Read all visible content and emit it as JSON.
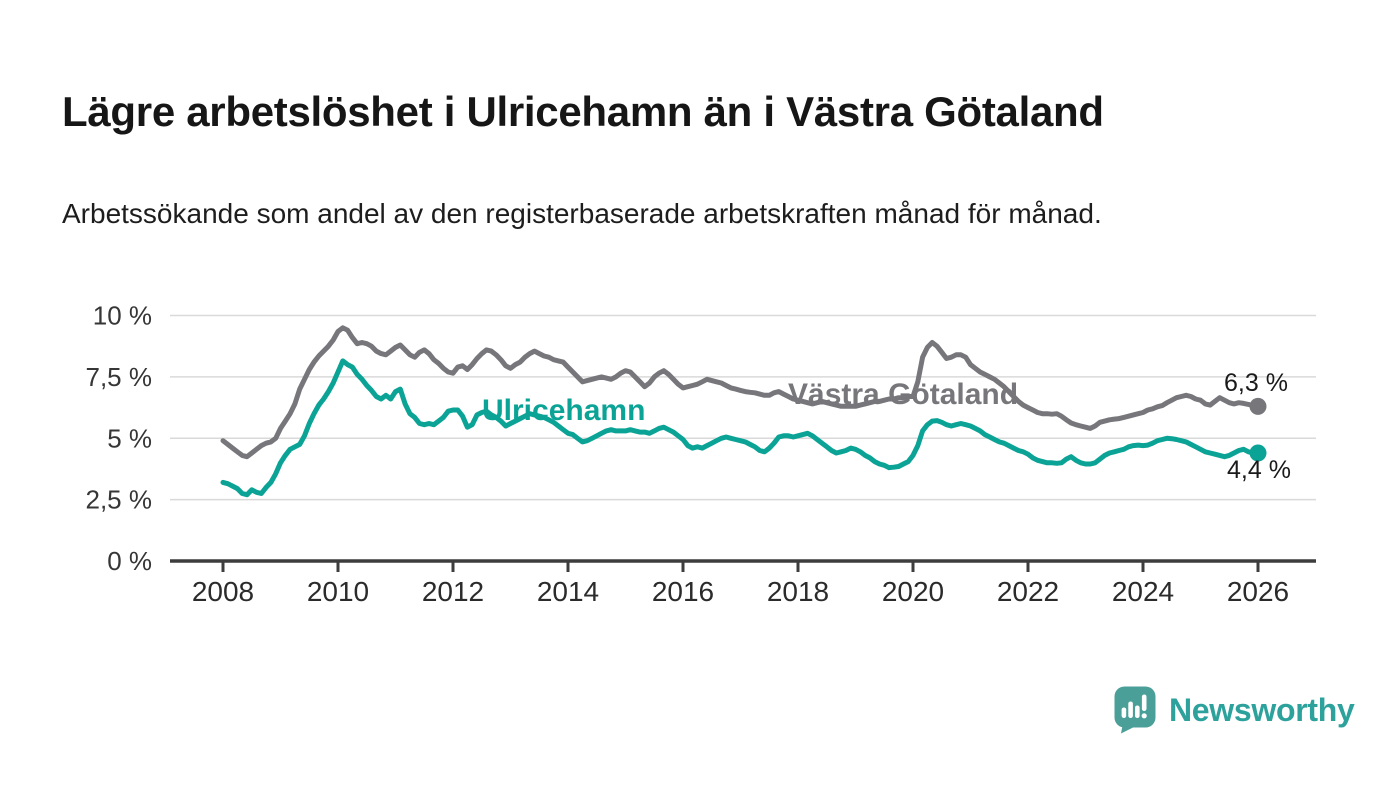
{
  "header": {
    "title": "Lägre arbetslöshet i Ulricehamn än i Västra Götaland",
    "subtitle": "Arbetssökande som andel av den registerbaserade arbetskraften månad för månad."
  },
  "chart_data": {
    "type": "line",
    "title": "Lägre arbetslöshet i Ulricehamn än i Västra Götaland",
    "subtitle": "Arbetssökande som andel av den registerbaserade arbetskraften månad för månad.",
    "grid": true,
    "legend_position": "inline-labels",
    "x_axis": {
      "range": [
        2007.1,
        2027.0
      ],
      "ticks": [
        {
          "value": 2008,
          "label": "2008"
        },
        {
          "value": 2010,
          "label": "2010"
        },
        {
          "value": 2012,
          "label": "2012"
        },
        {
          "value": 2014,
          "label": "2014"
        },
        {
          "value": 2016,
          "label": "2016"
        },
        {
          "value": 2018,
          "label": "2018"
        },
        {
          "value": 2020,
          "label": "2020"
        },
        {
          "value": 2022,
          "label": "2022"
        },
        {
          "value": 2024,
          "label": "2024"
        },
        {
          "value": 2026,
          "label": "2026"
        }
      ]
    },
    "y_axis": {
      "unit": "%",
      "range": [
        0,
        10.5
      ],
      "ticks": [
        {
          "value": 0,
          "label": "0 %"
        },
        {
          "value": 2.5,
          "label": "2,5 %"
        },
        {
          "value": 5,
          "label": "5 %"
        },
        {
          "value": 7.5,
          "label": "7,5 %"
        },
        {
          "value": 10,
          "label": "10 %"
        }
      ]
    },
    "series": [
      {
        "name": "Västra Götaland",
        "color": "#77767b",
        "start_year": 2008,
        "interval": "monthly",
        "end_value": 6.3,
        "end_label": "6,3 %",
        "values": [
          4.9,
          4.75,
          4.6,
          4.45,
          4.3,
          4.25,
          4.4,
          4.55,
          4.7,
          4.8,
          4.85,
          5.0,
          5.4,
          5.7,
          6.0,
          6.4,
          7.0,
          7.4,
          7.8,
          8.1,
          8.35,
          8.55,
          8.75,
          9.0,
          9.35,
          9.5,
          9.4,
          9.1,
          8.85,
          8.9,
          8.85,
          8.75,
          8.55,
          8.45,
          8.4,
          8.55,
          8.7,
          8.8,
          8.6,
          8.4,
          8.3,
          8.5,
          8.6,
          8.45,
          8.2,
          8.05,
          7.85,
          7.7,
          7.65,
          7.9,
          7.95,
          7.8,
          8.0,
          8.25,
          8.45,
          8.6,
          8.55,
          8.4,
          8.2,
          7.95,
          7.85,
          8.0,
          8.1,
          8.3,
          8.45,
          8.55,
          8.45,
          8.35,
          8.3,
          8.2,
          8.15,
          8.1,
          7.9,
          7.7,
          7.5,
          7.3,
          7.35,
          7.4,
          7.45,
          7.5,
          7.45,
          7.4,
          7.5,
          7.65,
          7.75,
          7.7,
          7.5,
          7.3,
          7.1,
          7.25,
          7.5,
          7.65,
          7.75,
          7.6,
          7.4,
          7.2,
          7.05,
          7.1,
          7.15,
          7.2,
          7.3,
          7.4,
          7.35,
          7.3,
          7.25,
          7.15,
          7.05,
          7.0,
          6.95,
          6.9,
          6.87,
          6.85,
          6.8,
          6.75,
          6.75,
          6.85,
          6.9,
          6.8,
          6.7,
          6.6,
          6.55,
          6.5,
          6.45,
          6.4,
          6.45,
          6.5,
          6.45,
          6.4,
          6.35,
          6.3,
          6.3,
          6.3,
          6.3,
          6.35,
          6.4,
          6.45,
          6.5,
          6.5,
          6.55,
          6.6,
          6.6,
          6.65,
          6.65,
          6.7,
          6.7,
          7.3,
          8.3,
          8.7,
          8.9,
          8.75,
          8.5,
          8.25,
          8.3,
          8.4,
          8.4,
          8.3,
          8.0,
          7.85,
          7.7,
          7.6,
          7.5,
          7.4,
          7.25,
          7.1,
          6.9,
          6.7,
          6.5,
          6.35,
          6.25,
          6.15,
          6.05,
          6.0,
          6.0,
          5.98,
          6.0,
          5.9,
          5.75,
          5.62,
          5.55,
          5.5,
          5.45,
          5.4,
          5.5,
          5.65,
          5.7,
          5.75,
          5.78,
          5.8,
          5.85,
          5.9,
          5.95,
          6.0,
          6.05,
          6.15,
          6.2,
          6.28,
          6.33,
          6.45,
          6.55,
          6.65,
          6.7,
          6.75,
          6.7,
          6.6,
          6.55,
          6.4,
          6.35,
          6.5,
          6.65,
          6.55,
          6.45,
          6.4,
          6.45,
          6.42,
          6.38,
          6.32,
          6.3
        ]
      },
      {
        "name": "Ulricehamn",
        "color": "#0ba396",
        "start_year": 2008,
        "interval": "monthly",
        "end_value": 4.4,
        "end_label": "4,4 %",
        "values": [
          3.2,
          3.15,
          3.05,
          2.95,
          2.75,
          2.7,
          2.9,
          2.8,
          2.75,
          3.0,
          3.2,
          3.55,
          4.0,
          4.3,
          4.55,
          4.65,
          4.75,
          5.1,
          5.6,
          6.0,
          6.35,
          6.6,
          6.9,
          7.25,
          7.7,
          8.15,
          8.0,
          7.9,
          7.6,
          7.4,
          7.15,
          6.95,
          6.7,
          6.6,
          6.75,
          6.6,
          6.9,
          7.0,
          6.4,
          6.0,
          5.85,
          5.6,
          5.55,
          5.6,
          5.55,
          5.7,
          5.85,
          6.1,
          6.15,
          6.15,
          5.9,
          5.45,
          5.55,
          5.95,
          6.05,
          6.1,
          5.95,
          5.85,
          5.7,
          5.5,
          5.6,
          5.7,
          5.8,
          5.9,
          6.0,
          5.95,
          5.9,
          5.85,
          5.75,
          5.65,
          5.5,
          5.35,
          5.2,
          5.15,
          5.0,
          4.85,
          4.9,
          5.0,
          5.1,
          5.2,
          5.3,
          5.35,
          5.3,
          5.3,
          5.3,
          5.35,
          5.3,
          5.25,
          5.25,
          5.2,
          5.3,
          5.4,
          5.45,
          5.35,
          5.25,
          5.1,
          4.95,
          4.7,
          4.6,
          4.65,
          4.6,
          4.7,
          4.8,
          4.9,
          5.0,
          5.05,
          5.0,
          4.95,
          4.9,
          4.85,
          4.75,
          4.65,
          4.5,
          4.45,
          4.6,
          4.8,
          5.05,
          5.1,
          5.1,
          5.05,
          5.1,
          5.15,
          5.2,
          5.1,
          4.95,
          4.8,
          4.65,
          4.5,
          4.4,
          4.45,
          4.5,
          4.6,
          4.55,
          4.45,
          4.3,
          4.2,
          4.05,
          3.95,
          3.9,
          3.8,
          3.82,
          3.85,
          3.95,
          4.05,
          4.3,
          4.7,
          5.3,
          5.55,
          5.7,
          5.72,
          5.65,
          5.55,
          5.5,
          5.55,
          5.6,
          5.55,
          5.5,
          5.4,
          5.3,
          5.15,
          5.05,
          4.95,
          4.85,
          4.8,
          4.7,
          4.6,
          4.5,
          4.45,
          4.35,
          4.2,
          4.1,
          4.05,
          4.0,
          4.0,
          3.98,
          4.0,
          4.15,
          4.25,
          4.1,
          4.0,
          3.95,
          3.95,
          4.0,
          4.15,
          4.3,
          4.4,
          4.45,
          4.5,
          4.55,
          4.65,
          4.7,
          4.72,
          4.7,
          4.72,
          4.8,
          4.9,
          4.95,
          5.0,
          4.98,
          4.95,
          4.9,
          4.85,
          4.75,
          4.65,
          4.55,
          4.45,
          4.4,
          4.35,
          4.3,
          4.25,
          4.3,
          4.4,
          4.5,
          4.55,
          4.45,
          4.4,
          4.4
        ]
      }
    ]
  },
  "footer": {
    "brand": "Newsworthy",
    "brand_color": "#2da19b",
    "icon": "newsworthy-speech-bubble-chart-icon",
    "icon_color": "#4a9f99"
  }
}
